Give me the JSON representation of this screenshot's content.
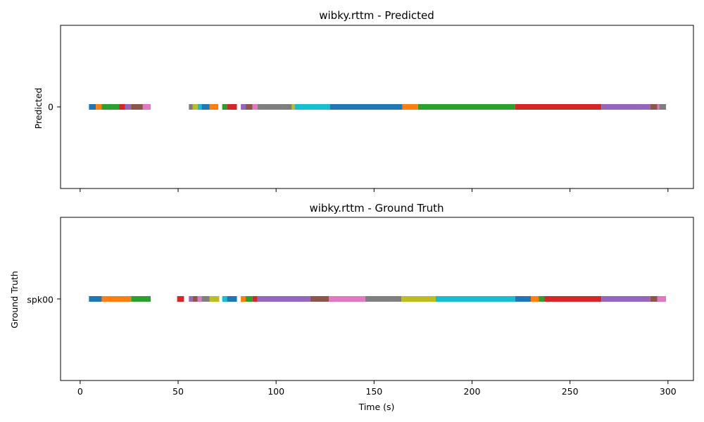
{
  "chart_data": [
    {
      "type": "timeline",
      "title": "wibky.rttm - Predicted",
      "ylabel": "Predicted",
      "xlabel": "",
      "row_label": "0",
      "xlim": [
        -10,
        313
      ],
      "xticks": [
        0,
        50,
        100,
        150,
        200,
        250,
        300
      ],
      "show_tick_labels": false,
      "segments": [
        {
          "start": 4.5,
          "end": 8,
          "color": "#1f77b4"
        },
        {
          "start": 8,
          "end": 11,
          "color": "#ff7f0e"
        },
        {
          "start": 11,
          "end": 20,
          "color": "#2ca02c"
        },
        {
          "start": 20,
          "end": 23,
          "color": "#d62728"
        },
        {
          "start": 23,
          "end": 26,
          "color": "#9467bd"
        },
        {
          "start": 26,
          "end": 32,
          "color": "#8c564b"
        },
        {
          "start": 32,
          "end": 36,
          "color": "#e377c2"
        },
        {
          "start": 55.5,
          "end": 57.5,
          "color": "#7f7f7f"
        },
        {
          "start": 57.5,
          "end": 60,
          "color": "#bcbd22"
        },
        {
          "start": 60,
          "end": 62,
          "color": "#17becf"
        },
        {
          "start": 62,
          "end": 66,
          "color": "#1f77b4"
        },
        {
          "start": 66,
          "end": 70.5,
          "color": "#ff7f0e"
        },
        {
          "start": 72.5,
          "end": 75,
          "color": "#2ca02c"
        },
        {
          "start": 75,
          "end": 80,
          "color": "#d62728"
        },
        {
          "start": 82,
          "end": 84.5,
          "color": "#9467bd"
        },
        {
          "start": 84.5,
          "end": 88,
          "color": "#8c564b"
        },
        {
          "start": 88,
          "end": 90.5,
          "color": "#e377c2"
        },
        {
          "start": 90.5,
          "end": 108,
          "color": "#7f7f7f"
        },
        {
          "start": 108,
          "end": 109.5,
          "color": "#bcbd22"
        },
        {
          "start": 109.5,
          "end": 127.5,
          "color": "#17becf"
        },
        {
          "start": 127.5,
          "end": 164.5,
          "color": "#1f77b4"
        },
        {
          "start": 164.5,
          "end": 172.5,
          "color": "#ff7f0e"
        },
        {
          "start": 172.5,
          "end": 222,
          "color": "#2ca02c"
        },
        {
          "start": 222,
          "end": 266,
          "color": "#d62728"
        },
        {
          "start": 266,
          "end": 291,
          "color": "#9467bd"
        },
        {
          "start": 291,
          "end": 294.5,
          "color": "#8c564b"
        },
        {
          "start": 294.5,
          "end": 295.5,
          "color": "#e377c2"
        },
        {
          "start": 295.5,
          "end": 299,
          "color": "#7f7f7f"
        }
      ]
    },
    {
      "type": "timeline",
      "title": "wibky.rttm - Ground Truth",
      "ylabel": "Ground Truth",
      "xlabel": "Time (s)",
      "row_label": "spk00",
      "xlim": [
        -10,
        313
      ],
      "xticks": [
        0,
        50,
        100,
        150,
        200,
        250,
        300
      ],
      "show_tick_labels": true,
      "segments": [
        {
          "start": 4.5,
          "end": 11,
          "color": "#1f77b4"
        },
        {
          "start": 11,
          "end": 26,
          "color": "#ff7f0e"
        },
        {
          "start": 26,
          "end": 36,
          "color": "#2ca02c"
        },
        {
          "start": 49.5,
          "end": 53,
          "color": "#d62728"
        },
        {
          "start": 55.5,
          "end": 57.5,
          "color": "#9467bd"
        },
        {
          "start": 57.5,
          "end": 60,
          "color": "#8c564b"
        },
        {
          "start": 60,
          "end": 62,
          "color": "#e377c2"
        },
        {
          "start": 62,
          "end": 66,
          "color": "#7f7f7f"
        },
        {
          "start": 66,
          "end": 71,
          "color": "#bcbd22"
        },
        {
          "start": 72.5,
          "end": 75,
          "color": "#17becf"
        },
        {
          "start": 75,
          "end": 80,
          "color": "#1f77b4"
        },
        {
          "start": 82,
          "end": 84.5,
          "color": "#ff7f0e"
        },
        {
          "start": 84.5,
          "end": 88,
          "color": "#2ca02c"
        },
        {
          "start": 88,
          "end": 90.5,
          "color": "#d62728"
        },
        {
          "start": 90.5,
          "end": 117.5,
          "color": "#9467bd"
        },
        {
          "start": 117.5,
          "end": 127,
          "color": "#8c564b"
        },
        {
          "start": 127,
          "end": 145.5,
          "color": "#e377c2"
        },
        {
          "start": 145.5,
          "end": 164,
          "color": "#7f7f7f"
        },
        {
          "start": 164,
          "end": 181.5,
          "color": "#bcbd22"
        },
        {
          "start": 181.5,
          "end": 222,
          "color": "#17becf"
        },
        {
          "start": 222,
          "end": 230,
          "color": "#1f77b4"
        },
        {
          "start": 230,
          "end": 234,
          "color": "#ff7f0e"
        },
        {
          "start": 234,
          "end": 237,
          "color": "#2ca02c"
        },
        {
          "start": 237,
          "end": 266,
          "color": "#d62728"
        },
        {
          "start": 266,
          "end": 291,
          "color": "#9467bd"
        },
        {
          "start": 291,
          "end": 294.5,
          "color": "#8c564b"
        },
        {
          "start": 294.5,
          "end": 299,
          "color": "#e377c2"
        }
      ]
    }
  ]
}
